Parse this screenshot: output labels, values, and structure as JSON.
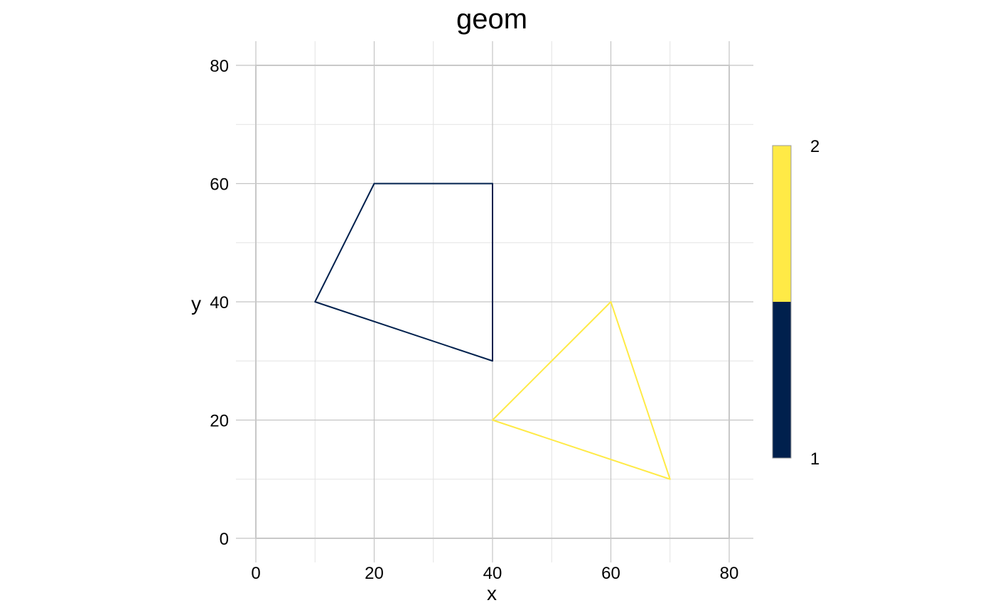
{
  "chart_data": {
    "type": "polygon",
    "title": "geom",
    "xlabel": "x",
    "ylabel": "y",
    "xlim": [
      0,
      80
    ],
    "ylim": [
      0,
      80
    ],
    "x_ticks": [
      0,
      20,
      40,
      60,
      80
    ],
    "y_ticks": [
      0,
      20,
      40,
      60,
      80
    ],
    "grid": true,
    "legend_position": "right",
    "legend": {
      "type": "colorbar",
      "labels": [
        "1",
        "2"
      ],
      "colors": [
        "#00204D",
        "#FFEA46"
      ]
    },
    "series": [
      {
        "value": 1,
        "color": "#00204D",
        "points": [
          [
            10,
            40
          ],
          [
            20,
            60
          ],
          [
            40,
            60
          ],
          [
            40,
            30
          ]
        ]
      },
      {
        "value": 2,
        "color": "#FFEA46",
        "points": [
          [
            40,
            20
          ],
          [
            60,
            40
          ],
          [
            70,
            10
          ]
        ]
      }
    ]
  }
}
